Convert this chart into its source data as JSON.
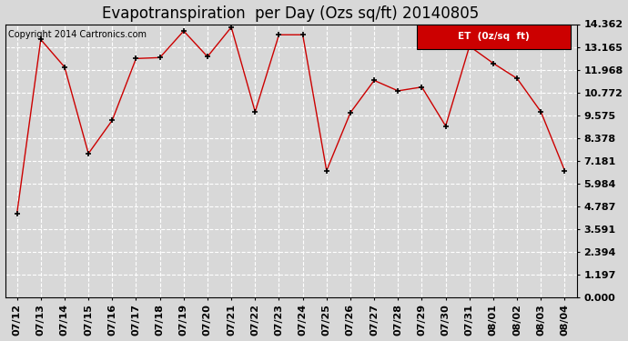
{
  "title": "Evapotranspiration  per Day (Ozs sq/ft) 20140805",
  "copyright": "Copyright 2014 Cartronics.com",
  "legend_label": "ET  (0z/sq  ft)",
  "x_labels": [
    "07/12",
    "07/13",
    "07/14",
    "07/15",
    "07/16",
    "07/17",
    "07/18",
    "07/19",
    "07/20",
    "07/21",
    "07/22",
    "07/23",
    "07/24",
    "07/25",
    "07/26",
    "07/27",
    "07/28",
    "07/29",
    "07/30",
    "07/31",
    "08/01",
    "08/02",
    "08/03",
    "08/04"
  ],
  "y_values": [
    4.4,
    13.55,
    12.1,
    7.55,
    9.3,
    12.55,
    12.6,
    14.0,
    12.65,
    14.2,
    9.75,
    13.8,
    13.8,
    6.65,
    9.7,
    11.4,
    10.85,
    11.05,
    9.0,
    13.2,
    12.3,
    11.5,
    9.75,
    6.65
  ],
  "y_ticks": [
    0.0,
    1.197,
    2.394,
    3.591,
    4.787,
    5.984,
    7.181,
    8.378,
    9.575,
    10.772,
    11.968,
    13.165,
    14.362
  ],
  "y_tick_labels": [
    "0.000",
    "1.197",
    "2.394",
    "3.591",
    "4.787",
    "5.984",
    "7.181",
    "8.378",
    "9.575",
    "10.772",
    "11.968",
    "13.165",
    "14.362"
  ],
  "ylim": [
    0.0,
    14.362
  ],
  "line_color": "#cc0000",
  "marker_color": "#000000",
  "bg_color": "#d8d8d8",
  "grid_color": "#ffffff",
  "title_fontsize": 12,
  "copyright_fontsize": 7,
  "tick_fontsize": 8,
  "legend_bg": "#cc0000",
  "legend_text_color": "#ffffff"
}
